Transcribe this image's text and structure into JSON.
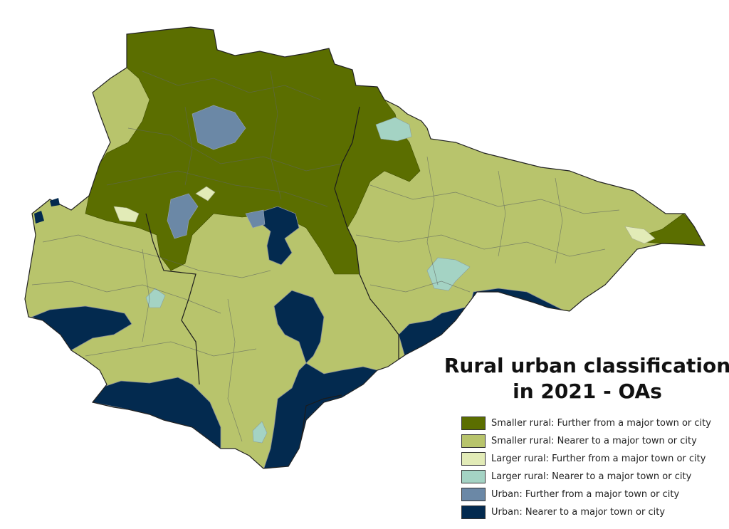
{
  "title": {
    "line1": "Rural urban classification",
    "line2": "in 2021 - OAs"
  },
  "legend": [
    {
      "label": "Smaller rural: Further from a major town or city",
      "color": "#5b6e00"
    },
    {
      "label": "Smaller rural: Nearer to a major town or city",
      "color": "#b8c46c"
    },
    {
      "label": "Larger rural: Further from a major town or city",
      "color": "#e2ebb7"
    },
    {
      "label": "Larger rural: Nearer to a major town or city",
      "color": "#a4d3c4"
    },
    {
      "label": "Urban: Further from a major town or city",
      "color": "#6b88a6"
    },
    {
      "label": "Urban: Nearer to a major town or city",
      "color": "#032a4f"
    }
  ]
}
